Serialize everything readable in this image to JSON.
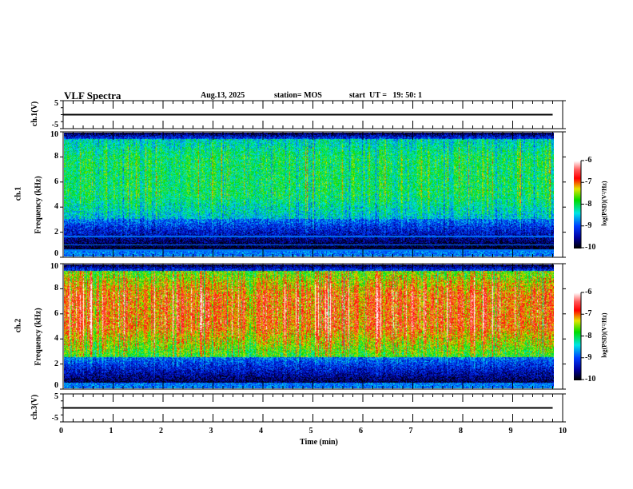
{
  "header": {
    "title": "VLF Spectra",
    "date": "Aug.13, 2025",
    "station": "station= MOS",
    "start": "start  UT =   19: 50: 1"
  },
  "chart_data": [
    {
      "type": "line",
      "name": "ch1-waveform",
      "ylabel": "ch.1(V)",
      "ylim": [
        -5,
        5
      ],
      "yticks": [
        "5",
        "-5"
      ],
      "level": 0
    },
    {
      "type": "heatmap",
      "name": "ch1-spectrogram",
      "ylabel": "ch.1\nFrequency (kHz)",
      "ylabel_ch": "ch.1",
      "ylabel_f": "Frequency (kHz)",
      "ylim": [
        0,
        10
      ],
      "yticks": [
        "0",
        "2",
        "4",
        "6",
        "8",
        "10"
      ],
      "band_khz": [
        3,
        9.5
      ],
      "peak_khz": [
        5,
        8
      ],
      "lines_khz": [
        0.5,
        0.9,
        1.6
      ],
      "colorbar": {
        "label": "log(PSD)(V²/Hz)",
        "range": [
          -10,
          -6
        ],
        "ticks": [
          "-6",
          "-7",
          "-8",
          "-9",
          "-10"
        ]
      }
    },
    {
      "type": "heatmap",
      "name": "ch2-spectrogram",
      "ylabel_ch": "ch.2",
      "ylabel_f": "Frequency (kHz)",
      "ylim": [
        0,
        10
      ],
      "yticks": [
        "0",
        "2",
        "4",
        "6",
        "8",
        "10"
      ],
      "band_khz": [
        2.5,
        9.5
      ],
      "peak_khz": [
        5,
        7.5
      ],
      "colorbar": {
        "label": "log(PSD)(V²/Hz)",
        "range": [
          -10,
          -6
        ],
        "ticks": [
          "-6",
          "-7",
          "-8",
          "-9",
          "-10"
        ]
      }
    },
    {
      "type": "line",
      "name": "ch3-waveform",
      "ylabel": "ch.3(V)",
      "ylim": [
        -5,
        5
      ],
      "yticks": [
        "5",
        "-5"
      ],
      "level": 0
    }
  ],
  "xaxis": {
    "label": "Time  (min)",
    "range": [
      0,
      10
    ],
    "data_end": 9.8,
    "ticks": [
      "0",
      "1",
      "2",
      "3",
      "4",
      "5",
      "6",
      "7",
      "8",
      "9",
      "10"
    ]
  }
}
